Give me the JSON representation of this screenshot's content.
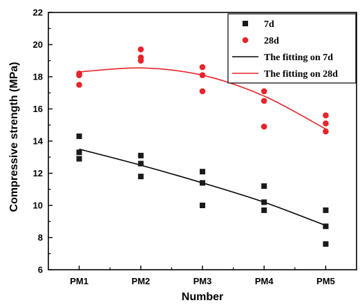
{
  "chart_data": {
    "type": "scatter",
    "xlabel": "Number",
    "ylabel": "Compressive strength (MPa)",
    "categories": [
      "PM1",
      "PM2",
      "PM3",
      "PM4",
      "PM5"
    ],
    "ylim": [
      6,
      22
    ],
    "yticks": [
      6,
      8,
      10,
      12,
      14,
      16,
      18,
      20,
      22
    ],
    "grid": false,
    "legend_position": "top-right",
    "series": [
      {
        "name": "7d",
        "kind": "scatter",
        "marker": "square",
        "color": "#1a1a1a",
        "points": [
          {
            "x": "PM1",
            "y": 14.3
          },
          {
            "x": "PM1",
            "y": 13.3
          },
          {
            "x": "PM1",
            "y": 12.9
          },
          {
            "x": "PM2",
            "y": 13.1
          },
          {
            "x": "PM2",
            "y": 12.6
          },
          {
            "x": "PM2",
            "y": 11.8
          },
          {
            "x": "PM3",
            "y": 12.1
          },
          {
            "x": "PM3",
            "y": 11.4
          },
          {
            "x": "PM3",
            "y": 10.0
          },
          {
            "x": "PM4",
            "y": 11.2
          },
          {
            "x": "PM4",
            "y": 10.2
          },
          {
            "x": "PM4",
            "y": 9.7
          },
          {
            "x": "PM5",
            "y": 9.7
          },
          {
            "x": "PM5",
            "y": 8.7
          },
          {
            "x": "PM5",
            "y": 7.6
          }
        ]
      },
      {
        "name": "28d",
        "kind": "scatter",
        "marker": "circle",
        "color": "#e8232a",
        "points": [
          {
            "x": "PM1",
            "y": 18.2
          },
          {
            "x": "PM1",
            "y": 18.1
          },
          {
            "x": "PM1",
            "y": 17.5
          },
          {
            "x": "PM2",
            "y": 19.7
          },
          {
            "x": "PM2",
            "y": 19.2
          },
          {
            "x": "PM2",
            "y": 19.0
          },
          {
            "x": "PM3",
            "y": 18.6
          },
          {
            "x": "PM3",
            "y": 18.1
          },
          {
            "x": "PM3",
            "y": 17.1
          },
          {
            "x": "PM4",
            "y": 17.1
          },
          {
            "x": "PM4",
            "y": 16.5
          },
          {
            "x": "PM4",
            "y": 14.9
          },
          {
            "x": "PM5",
            "y": 15.6
          },
          {
            "x": "PM5",
            "y": 15.1
          },
          {
            "x": "PM5",
            "y": 14.6
          }
        ]
      },
      {
        "name": "The fitting on 7d",
        "kind": "line",
        "color": "#000000",
        "values": [
          13.5,
          12.5,
          11.4,
          10.2,
          8.75
        ]
      },
      {
        "name": "The fitting on 28d",
        "kind": "line",
        "color": "#e8232a",
        "values": [
          18.3,
          18.55,
          18.1,
          16.8,
          14.75
        ]
      }
    ]
  }
}
